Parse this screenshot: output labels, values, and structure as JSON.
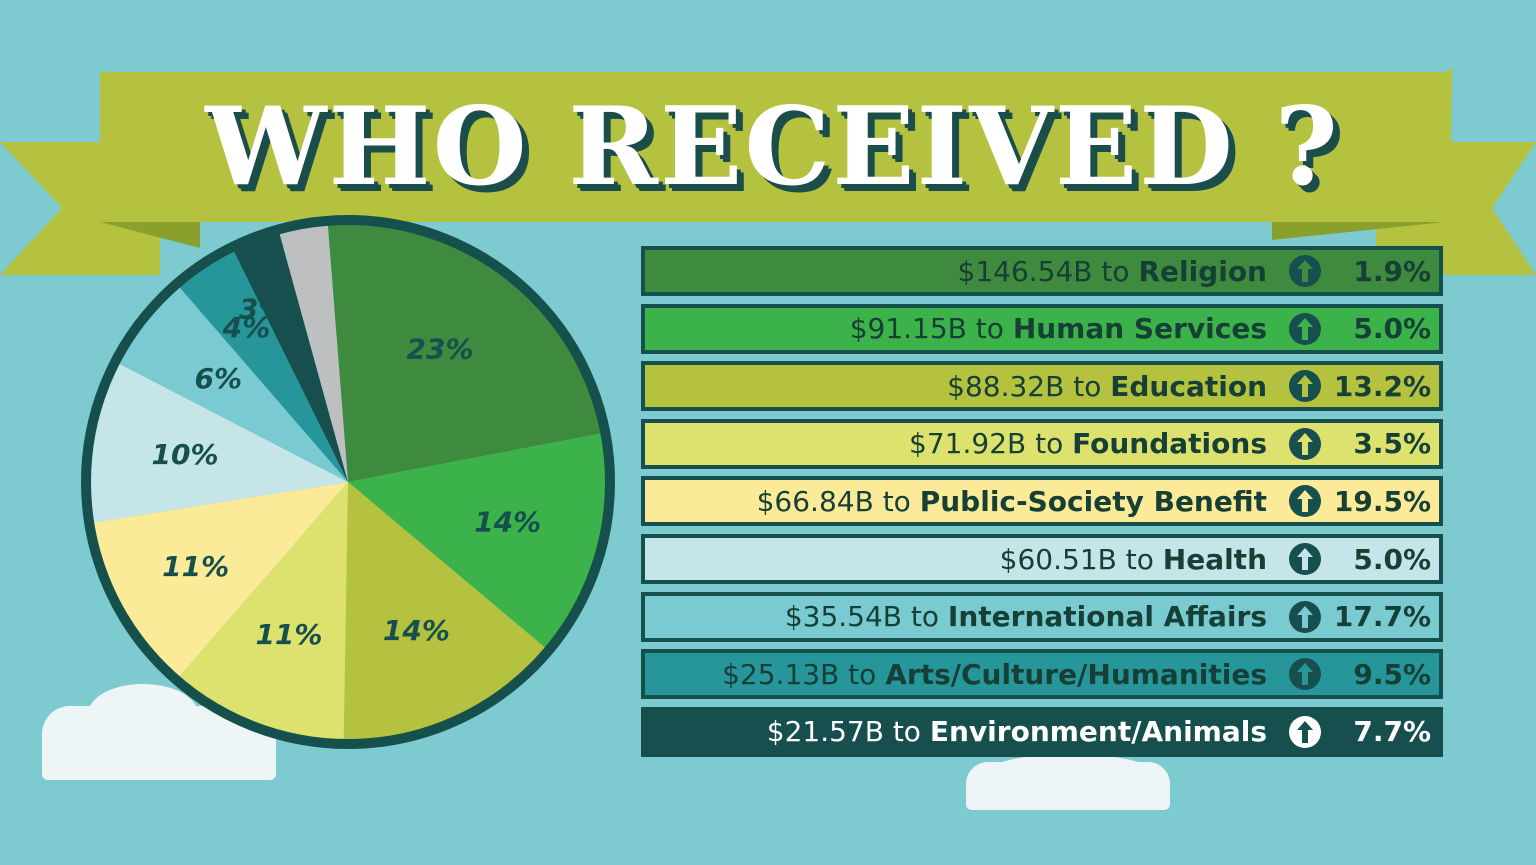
{
  "title": "WHO RECEIVED ?",
  "colors": {
    "background": "#7dcbd0",
    "banner": "#b5c23f",
    "banner_dark": "#8aa02c",
    "outline": "#15504d"
  },
  "chart_data": [
    {
      "type": "pie",
      "slices": [
        {
          "label": "23%",
          "value": 23,
          "color": "#3e8a3e"
        },
        {
          "label": "14%",
          "value": 14,
          "color": "#3bb34a"
        },
        {
          "label": "14%",
          "value": 14,
          "color": "#b5c23f"
        },
        {
          "label": "11%",
          "value": 11,
          "color": "#dde26f"
        },
        {
          "label": "11%",
          "value": 11,
          "color": "#fbeb98"
        },
        {
          "label": "10%",
          "value": 10,
          "color": "#c5e5e8"
        },
        {
          "label": "6%",
          "value": 6,
          "color": "#79cbd1"
        },
        {
          "label": "4%",
          "value": 4,
          "color": "#26969b"
        },
        {
          "label": "3%",
          "value": 3,
          "color": "#164f4d"
        },
        {
          "label": "",
          "value": 3,
          "color": "#bdbfc1"
        }
      ]
    },
    {
      "type": "table",
      "rows": [
        {
          "amount": "$146.54B to",
          "category": "Religion",
          "change": "1.9%",
          "fill": "#3e8a3e",
          "text_color": "#163f35"
        },
        {
          "amount": "$91.15B to",
          "category": "Human Services",
          "change": "5.0%",
          "fill": "#3bb34a",
          "text_color": "#163f35"
        },
        {
          "amount": "$88.32B to",
          "category": "Education",
          "change": "13.2%",
          "fill": "#b5c23f",
          "text_color": "#163f35"
        },
        {
          "amount": "$71.92B to",
          "category": "Foundations",
          "change": "3.5%",
          "fill": "#dde26f",
          "text_color": "#163f35"
        },
        {
          "amount": "$66.84B to",
          "category": "Public-Society Benefit",
          "change": "19.5%",
          "fill": "#fbeb98",
          "text_color": "#163f35"
        },
        {
          "amount": "$60.51B to",
          "category": "Health",
          "change": "5.0%",
          "fill": "#c5e5e8",
          "text_color": "#163f35"
        },
        {
          "amount": "$35.54B to",
          "category": "International Affairs",
          "change": "17.7%",
          "fill": "#79cbd1",
          "text_color": "#163f35"
        },
        {
          "amount": "$25.13B to",
          "category": "Arts/Culture/Humanities",
          "change": "9.5%",
          "fill": "#26969b",
          "text_color": "#163f35"
        },
        {
          "amount": "$21.57B to",
          "category": "Environment/Animals",
          "change": "7.7%",
          "fill": "#164f4d",
          "text_color": "#ffffff"
        }
      ]
    }
  ]
}
